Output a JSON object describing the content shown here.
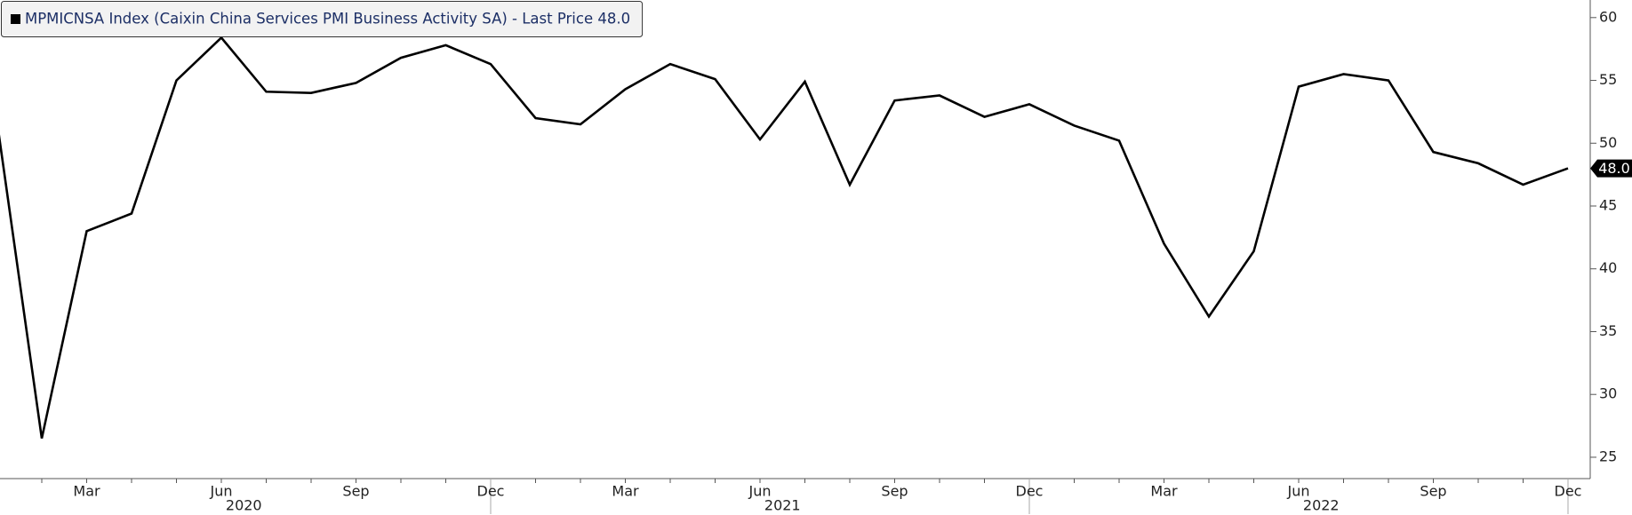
{
  "chart_data": {
    "type": "line",
    "categories": [
      null,
      null,
      "Mar",
      null,
      null,
      "Jun",
      null,
      null,
      "Sep",
      null,
      null,
      "Dec",
      null,
      null,
      "Mar",
      null,
      null,
      "Jun",
      null,
      null,
      "Sep",
      null,
      null,
      "Dec",
      null,
      null,
      "Mar",
      null,
      null,
      "Jun",
      null,
      null,
      "Sep",
      null,
      null,
      "Dec"
    ],
    "years": [
      "2020",
      "2021",
      "2022"
    ],
    "series": [
      {
        "name": "MPMICNSA Index (Caixin China Services PMI Business Activity SA) - Last Price 48.0",
        "color": "#000000",
        "values": [
          51.8,
          26.5,
          43.0,
          44.4,
          55.0,
          58.4,
          54.1,
          54.0,
          54.8,
          56.8,
          57.8,
          56.3,
          52.0,
          51.5,
          54.3,
          56.3,
          55.1,
          50.3,
          54.9,
          46.7,
          53.4,
          53.8,
          52.1,
          53.1,
          51.4,
          50.2,
          42.0,
          36.2,
          41.4,
          54.5,
          55.5,
          55.0,
          49.3,
          48.4,
          46.7,
          48.0
        ],
        "value_labels": [
          null,
          null,
          null,
          null,
          null,
          null,
          null,
          null,
          null,
          null,
          null,
          null,
          null,
          null,
          null,
          null,
          null,
          null,
          null,
          null,
          null,
          null,
          null,
          null,
          null,
          null,
          null,
          null,
          null,
          null,
          null,
          null,
          null,
          null,
          null,
          "48.0"
        ]
      }
    ],
    "ylim": [
      23.3,
      61.4
    ],
    "yticks": [
      25,
      30,
      35,
      40,
      45,
      50,
      55,
      60
    ],
    "grid": false,
    "legend": "top-left"
  }
}
